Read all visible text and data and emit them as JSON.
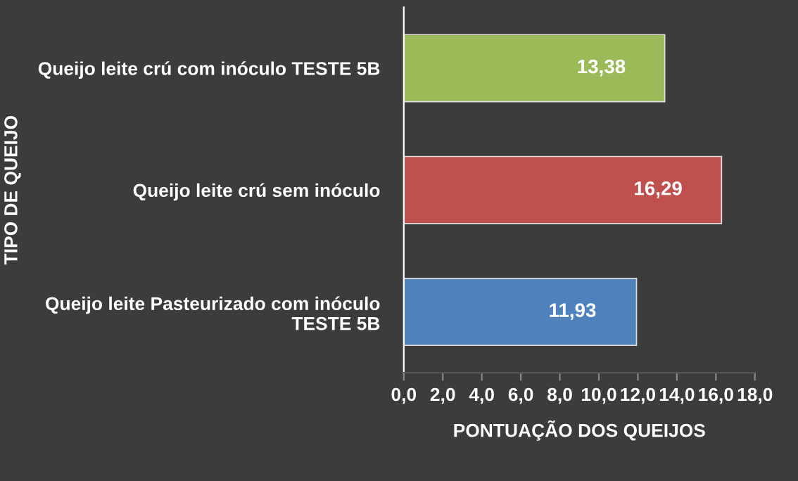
{
  "chart_data": {
    "type": "bar",
    "orientation": "horizontal",
    "categories": [
      "Queijo leite crú com inóculo TESTE 5B",
      "Queijo leite crú sem inóculo",
      "Queijo leite Pasteurizado com inóculo\nTESTE 5B"
    ],
    "values": [
      13.38,
      16.29,
      11.93
    ],
    "colors": [
      "#9bbb59",
      "#c0504d",
      "#4f81bd"
    ],
    "value_labels": [
      "13,38",
      "16,29",
      "11,93"
    ],
    "xlabel": "PONTUAÇÃO DOS QUEIJOS",
    "ylabel": "TIPO DE QUEIJO",
    "xlim": [
      0,
      18
    ],
    "xticks": [
      {
        "value": 0,
        "label": "0,0"
      },
      {
        "value": 2,
        "label": "2,0"
      },
      {
        "value": 4,
        "label": "4,0"
      },
      {
        "value": 6,
        "label": "6,0"
      },
      {
        "value": 8,
        "label": "8,0"
      },
      {
        "value": 10,
        "label": "10,0"
      },
      {
        "value": 12,
        "label": "12,0"
      },
      {
        "value": 14,
        "label": "14,0"
      },
      {
        "value": 16,
        "label": "16,0"
      },
      {
        "value": 18,
        "label": "18,0"
      }
    ],
    "grid": false,
    "legend": false
  }
}
